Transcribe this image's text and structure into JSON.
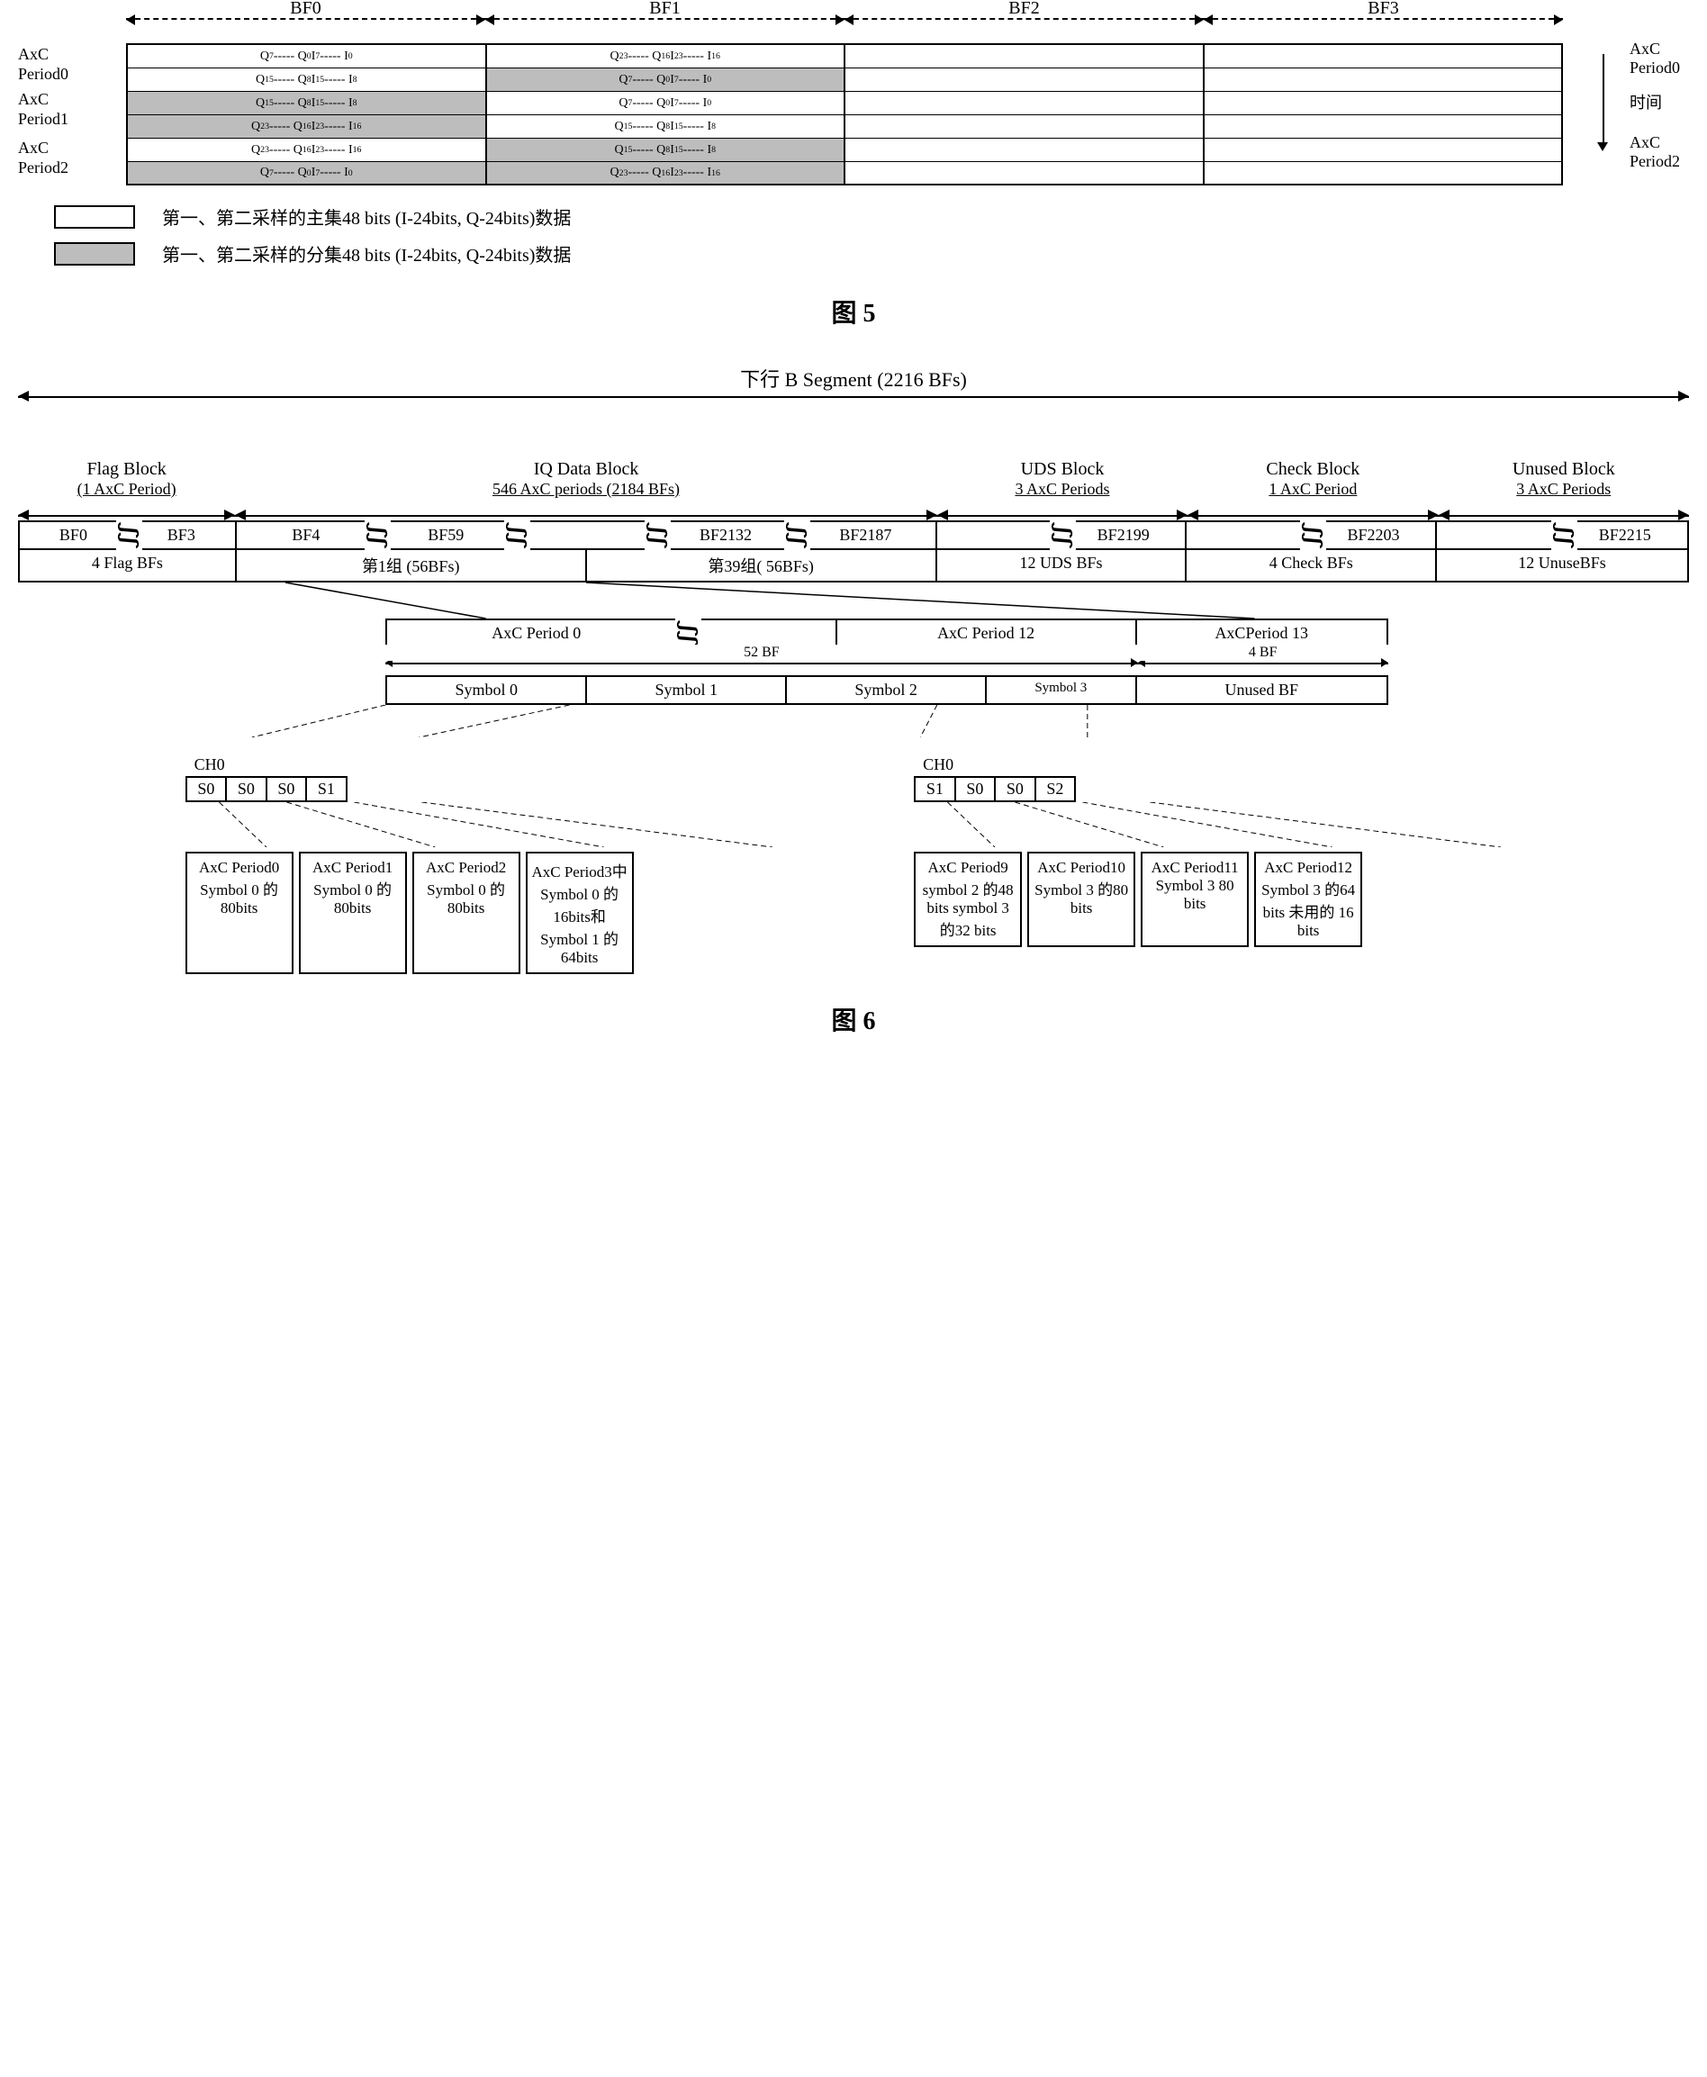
{
  "fig5": {
    "bf_headers": [
      "BF0",
      "BF1",
      "BF2",
      "BF3"
    ],
    "row_labels_left": [
      "AxC",
      "Period0",
      "AxC",
      "Period1",
      "AxC",
      "Period2"
    ],
    "row_labels_right": [
      "AxC",
      "Period0",
      "时间",
      "AxC",
      "Period2"
    ],
    "cells": [
      [
        {
          "t": "Q7 ----- Q0 I7 ----- I0",
          "s": false
        },
        {
          "t": "Q23 ----- Q16 I23 ----- I16",
          "s": false
        },
        {
          "t": "",
          "s": false
        },
        {
          "t": "",
          "s": false
        }
      ],
      [
        {
          "t": "Q15 ----- Q8 I15 ----- I8",
          "s": false
        },
        {
          "t": "Q7 ----- Q0 I7 ----- I0",
          "s": true
        },
        {
          "t": "",
          "s": false
        },
        {
          "t": "",
          "s": false
        }
      ],
      [
        {
          "t": "Q15 ----- Q8 I15 ----- I8",
          "s": true
        },
        {
          "t": "Q7 ----- Q0 I7 ----- I0",
          "s": false
        },
        {
          "t": "",
          "s": false
        },
        {
          "t": "",
          "s": false
        }
      ],
      [
        {
          "t": "Q23 ----- Q16 I23 ----- I16",
          "s": true
        },
        {
          "t": "Q15 ----- Q8 I15 ----- I8",
          "s": false
        },
        {
          "t": "",
          "s": false
        },
        {
          "t": "",
          "s": false
        }
      ],
      [
        {
          "t": "Q23 ----- Q16 I23 ----- I16",
          "s": false
        },
        {
          "t": "Q15 ----- Q8 I15 ----- I8",
          "s": true
        },
        {
          "t": "",
          "s": false
        },
        {
          "t": "",
          "s": false
        }
      ],
      [
        {
          "t": "Q7 ----- Q0 I7 ----- I0",
          "s": true
        },
        {
          "t": "Q23 ----- Q16 I23 ----- I16",
          "s": true
        },
        {
          "t": "",
          "s": false
        },
        {
          "t": "",
          "s": false
        }
      ]
    ],
    "legend": [
      {
        "shaded": false,
        "text": "第一、第二采样的主集48 bits (I-24bits, Q-24bits)数据"
      },
      {
        "shaded": true,
        "text": "第一、第二采样的分集48 bits (I-24bits, Q-24bits)数据"
      }
    ],
    "time_label": "时间",
    "caption": "图 5"
  },
  "fig6": {
    "top_title": "下行  B Segment (2216 BFs)",
    "blocks": [
      {
        "title": "Flag Block",
        "sub": "(1 AxC Period)",
        "w": 13,
        "bfs": [
          "BF0",
          "BF3"
        ],
        "desc": "4 Flag BFs"
      },
      {
        "title": "IQ Data Block",
        "sub": "546 AxC periods (2184 BFs)",
        "w": 42,
        "bfs": [
          "BF4",
          "BF59",
          "",
          "BF2132",
          "BF2187"
        ],
        "desc": [
          "第1组 (56BFs)",
          "第39组( 56BFs)"
        ]
      },
      {
        "title": "UDS Block",
        "sub": "3 AxC Periods",
        "w": 15,
        "bfs": [
          "",
          "BF2199"
        ],
        "desc": "12 UDS BFs"
      },
      {
        "title": "Check Block",
        "sub": "1 AxC Period",
        "w": 15,
        "bfs": [
          "",
          "BF2203"
        ],
        "desc": "4 Check BFs"
      },
      {
        "title": "Unused Block",
        "sub": "3 AxC Periods",
        "w": 15,
        "bfs": [
          "",
          "BF2215"
        ],
        "desc": "12 UnuseBFs"
      }
    ],
    "periods": {
      "cells": [
        "AxC Period 0",
        "",
        "AxC Period 12",
        "AxCPeriod 13"
      ],
      "arrows": [
        {
          "label": "52 BF",
          "w": 75
        },
        {
          "label": "4 BF",
          "w": 25
        }
      ],
      "symbols": [
        "Symbol 0",
        "Symbol 1",
        "Symbol 2",
        "Symbol 3",
        "Unused BF"
      ]
    },
    "ch_groups": [
      {
        "label": "CH0",
        "cells": [
          "S0",
          "S0",
          "S0",
          "S1"
        ],
        "details": [
          "AxC Period0 Symbol 0 的80bits",
          "AxC Period1 Symbol 0 的80bits",
          "AxC Period2 Symbol 0 的80bits",
          "AxC Period3中 Symbol 0 的16bits和 Symbol 1 的64bits"
        ]
      },
      {
        "label": "CH0",
        "cells": [
          "S1",
          "S0",
          "S0",
          "S2"
        ],
        "details": [
          "AxC Period9 symbol 2 的48 bits symbol 3 的32 bits",
          "AxC Period10 Symbol 3 的80 bits",
          "AxC Period11 Symbol 3 80 bits",
          "AxC Period12 Symbol 3 的64 bits 未用的 16 bits"
        ]
      }
    ],
    "caption": "图 6"
  },
  "colors": {
    "shade": "#bdbdbd",
    "line": "#000000",
    "bg": "#ffffff"
  }
}
